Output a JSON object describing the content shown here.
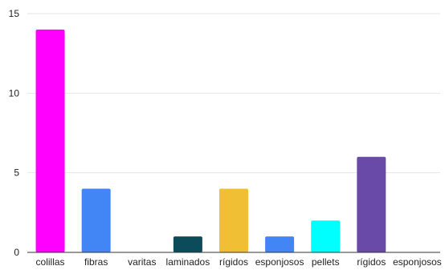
{
  "chart_data": {
    "type": "bar",
    "title": "",
    "xlabel": "",
    "ylabel": "",
    "categories": [
      "colillas",
      "fibras",
      "varitas",
      "laminados",
      "rígidos",
      "esponjosos",
      "pellets",
      "rígidos",
      "esponjosos"
    ],
    "values": [
      14,
      4,
      0,
      1,
      4,
      1,
      2,
      6,
      0
    ],
    "bar_colors": [
      "#ff00ff",
      "#4285f4",
      "#4285f4",
      "#0b4b5a",
      "#f1bf34",
      "#4285f4",
      "#00ffff",
      "#6a4aa8",
      "#4285f4"
    ],
    "ylim": [
      0,
      15
    ],
    "yticks": [
      "0",
      "5",
      "10",
      "15"
    ],
    "grid": true,
    "legend": "none"
  }
}
